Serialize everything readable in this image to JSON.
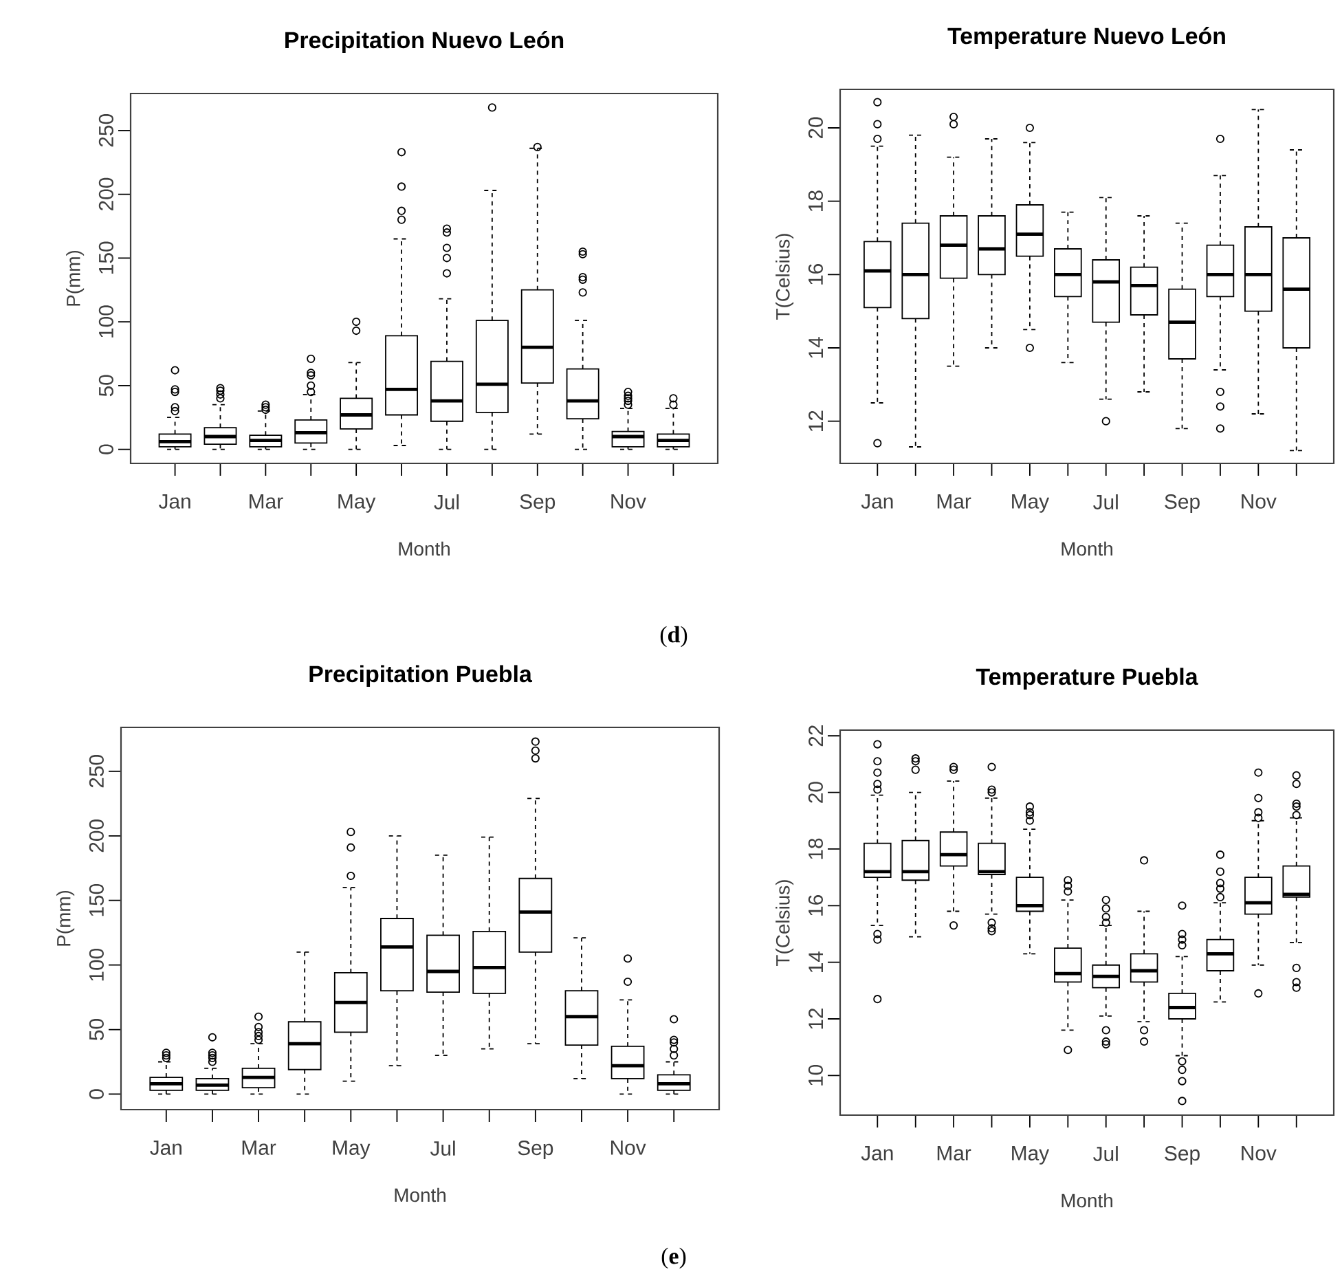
{
  "chart_data": [
    {
      "type": "box",
      "title": "Precipitation Nuevo León",
      "xlabel": "Month",
      "ylabel": "P(mm)",
      "marker": "circle",
      "annotations": [
        "(**d**)"
      ],
      "categories": [
        "Jan",
        null,
        "Mar",
        null,
        "May",
        null,
        "Jul",
        null,
        "Sep",
        null,
        "Nov",
        null
      ],
      "ylim": [
        -11,
        279
      ],
      "yticks": [
        0,
        50,
        100,
        150,
        200,
        250
      ],
      "boxes": [
        {
          "low": 0,
          "q1": 2,
          "median": 6,
          "q3": 12,
          "high": 25,
          "outliers": [
            30,
            33,
            45,
            47,
            62
          ]
        },
        {
          "low": 0,
          "q1": 4,
          "median": 10,
          "q3": 17,
          "high": 35,
          "outliers": [
            40,
            43,
            46,
            48
          ]
        },
        {
          "low": 0,
          "q1": 2,
          "median": 7,
          "q3": 11,
          "high": 30,
          "outliers": [
            31,
            33,
            35
          ]
        },
        {
          "low": 0,
          "q1": 5,
          "median": 13,
          "q3": 23,
          "high": 43,
          "outliers": [
            45,
            50,
            58,
            60,
            71
          ]
        },
        {
          "low": 0,
          "q1": 16,
          "median": 27,
          "q3": 40,
          "high": 68,
          "outliers": [
            93,
            100
          ]
        },
        {
          "low": 3,
          "q1": 27,
          "median": 47,
          "q3": 89,
          "high": 165,
          "outliers": [
            180,
            187,
            206,
            233
          ]
        },
        {
          "low": 0,
          "q1": 22,
          "median": 38,
          "q3": 69,
          "high": 118,
          "outliers": [
            138,
            150,
            158,
            170,
            173
          ]
        },
        {
          "low": 0,
          "q1": 29,
          "median": 51,
          "q3": 101,
          "high": 203,
          "outliers": [
            268
          ]
        },
        {
          "low": 12,
          "q1": 52,
          "median": 80,
          "q3": 125,
          "high": 236,
          "outliers": [
            237
          ]
        },
        {
          "low": 0,
          "q1": 24,
          "median": 38,
          "q3": 63,
          "high": 101,
          "outliers": [
            123,
            133,
            135,
            153,
            155
          ]
        },
        {
          "low": 0,
          "q1": 2,
          "median": 10,
          "q3": 14,
          "high": 32,
          "outliers": [
            35,
            38,
            40,
            42,
            45
          ]
        },
        {
          "low": 0,
          "q1": 2,
          "median": 7,
          "q3": 12,
          "high": 32,
          "outliers": [
            35,
            40
          ]
        }
      ]
    },
    {
      "type": "box",
      "title": "Temperature Nuevo León",
      "xlabel": "Month",
      "ylabel": "T(Celsius)",
      "marker": "circle",
      "categories": [
        "Jan",
        null,
        "Mar",
        null,
        "May",
        null,
        "Jul",
        null,
        "Sep",
        null,
        "Nov",
        null
      ],
      "ylim": [
        10.85,
        21.05
      ],
      "yticks": [
        12,
        14,
        16,
        18,
        20
      ],
      "boxes": [
        {
          "low": 12.5,
          "q1": 15.1,
          "median": 16.1,
          "q3": 16.9,
          "high": 19.5,
          "outliers": [
            11.4,
            19.7,
            20.1,
            20.7
          ]
        },
        {
          "low": 11.3,
          "q1": 14.8,
          "median": 16.0,
          "q3": 17.4,
          "high": 19.8
        },
        {
          "low": 13.5,
          "q1": 15.9,
          "median": 16.8,
          "q3": 17.6,
          "high": 19.2,
          "outliers": [
            20.1,
            20.3
          ]
        },
        {
          "low": 14.0,
          "q1": 16.0,
          "median": 16.7,
          "q3": 17.6,
          "high": 19.7
        },
        {
          "low": 14.5,
          "q1": 16.5,
          "median": 17.1,
          "q3": 17.9,
          "high": 19.6,
          "outliers": [
            14.0,
            20.0
          ]
        },
        {
          "low": 13.6,
          "q1": 15.4,
          "median": 16.0,
          "q3": 16.7,
          "high": 17.7
        },
        {
          "low": 12.6,
          "q1": 14.7,
          "median": 15.8,
          "q3": 16.4,
          "high": 18.1,
          "outliers": [
            12.0
          ]
        },
        {
          "low": 12.8,
          "q1": 14.9,
          "median": 15.7,
          "q3": 16.2,
          "high": 17.6
        },
        {
          "low": 11.8,
          "q1": 13.7,
          "median": 14.7,
          "q3": 15.6,
          "high": 17.4
        },
        {
          "low": 13.4,
          "q1": 15.4,
          "median": 16.0,
          "q3": 16.8,
          "high": 18.7,
          "outliers": [
            11.8,
            12.4,
            12.8,
            19.7
          ]
        },
        {
          "low": 12.2,
          "q1": 15.0,
          "median": 16.0,
          "q3": 17.3,
          "high": 20.5
        },
        {
          "low": 11.2,
          "q1": 14.0,
          "median": 15.6,
          "q3": 17.0,
          "high": 19.4
        }
      ]
    },
    {
      "type": "box",
      "title": "Precipitation  Puebla",
      "xlabel": "Month",
      "ylabel": "P(mm)",
      "marker": "circle",
      "annotations": [
        "(**e**)"
      ],
      "categories": [
        "Jan",
        null,
        "Mar",
        null,
        "May",
        null,
        "Jul",
        null,
        "Sep",
        null,
        "Nov",
        null
      ],
      "ylim": [
        -12,
        284
      ],
      "yticks": [
        0,
        50,
        100,
        150,
        200,
        250
      ],
      "boxes": [
        {
          "low": 0,
          "q1": 3,
          "median": 8,
          "q3": 13,
          "high": 25,
          "outliers": [
            28,
            30,
            32
          ]
        },
        {
          "low": 0,
          "q1": 3,
          "median": 7,
          "q3": 12,
          "high": 20,
          "outliers": [
            25,
            28,
            30,
            32,
            44
          ]
        },
        {
          "low": 0,
          "q1": 5,
          "median": 13,
          "q3": 20,
          "high": 39,
          "outliers": [
            42,
            45,
            48,
            52,
            60
          ]
        },
        {
          "low": 0,
          "q1": 19,
          "median": 39,
          "q3": 56,
          "high": 110
        },
        {
          "low": 10,
          "q1": 48,
          "median": 71,
          "q3": 94,
          "high": 160,
          "outliers": [
            169,
            191,
            203
          ]
        },
        {
          "low": 22,
          "q1": 80,
          "median": 114,
          "q3": 136,
          "high": 200
        },
        {
          "low": 30,
          "q1": 79,
          "median": 95,
          "q3": 123,
          "high": 185
        },
        {
          "low": 35,
          "q1": 78,
          "median": 98,
          "q3": 126,
          "high": 199
        },
        {
          "low": 39,
          "q1": 110,
          "median": 141,
          "q3": 167,
          "high": 229,
          "outliers": [
            260,
            266,
            273
          ]
        },
        {
          "low": 12,
          "q1": 38,
          "median": 60,
          "q3": 80,
          "high": 121
        },
        {
          "low": 0,
          "q1": 12,
          "median": 22,
          "q3": 37,
          "high": 73,
          "outliers": [
            87,
            105
          ]
        },
        {
          "low": 0,
          "q1": 3,
          "median": 8,
          "q3": 15,
          "high": 25,
          "outliers": [
            30,
            35,
            40,
            42,
            58
          ]
        }
      ]
    },
    {
      "type": "box",
      "title": "Temperature Puebla",
      "xlabel": "Month",
      "ylabel": "T(Celsius)",
      "marker": "circle",
      "categories": [
        "Jan",
        null,
        "Mar",
        null,
        "May",
        null,
        "Jul",
        null,
        "Sep",
        null,
        "Nov",
        null
      ],
      "ylim": [
        8.6,
        22.2
      ],
      "yticks": [
        10,
        12,
        14,
        16,
        18,
        20,
        22
      ],
      "boxes": [
        {
          "low": 15.3,
          "q1": 17.0,
          "median": 17.2,
          "q3": 18.2,
          "high": 19.9,
          "outliers": [
            12.7,
            14.8,
            15.0,
            20.1,
            20.3,
            20.7,
            21.1,
            21.7
          ]
        },
        {
          "low": 14.9,
          "q1": 16.9,
          "median": 17.2,
          "q3": 18.3,
          "high": 20.0,
          "outliers": [
            20.8,
            21.1,
            21.2
          ]
        },
        {
          "low": 15.8,
          "q1": 17.4,
          "median": 17.8,
          "q3": 18.6,
          "high": 20.4,
          "outliers": [
            15.3,
            20.8,
            20.9
          ]
        },
        {
          "low": 15.7,
          "q1": 17.1,
          "median": 17.2,
          "q3": 18.2,
          "high": 19.8,
          "outliers": [
            15.1,
            15.2,
            15.4,
            20.0,
            20.1,
            20.9
          ]
        },
        {
          "low": 14.3,
          "q1": 15.8,
          "median": 16.0,
          "q3": 17.0,
          "high": 18.7,
          "outliers": [
            19.0,
            19.2,
            19.3,
            19.5
          ]
        },
        {
          "low": 11.6,
          "q1": 13.3,
          "median": 13.6,
          "q3": 14.5,
          "high": 16.2,
          "outliers": [
            10.9,
            16.5,
            16.7,
            16.9
          ]
        },
        {
          "low": 12.1,
          "q1": 13.1,
          "median": 13.5,
          "q3": 13.9,
          "high": 15.3,
          "outliers": [
            11.1,
            11.2,
            11.6,
            15.4,
            15.6,
            15.9,
            16.2
          ]
        },
        {
          "low": 11.9,
          "q1": 13.3,
          "median": 13.7,
          "q3": 14.3,
          "high": 15.8,
          "outliers": [
            11.2,
            11.6,
            17.6
          ]
        },
        {
          "low": 10.7,
          "q1": 12.0,
          "median": 12.4,
          "q3": 12.9,
          "high": 14.2,
          "outliers": [
            9.1,
            9.8,
            10.2,
            10.5,
            14.6,
            14.8,
            15.0,
            16.0
          ]
        },
        {
          "low": 12.6,
          "q1": 13.7,
          "median": 14.3,
          "q3": 14.8,
          "high": 16.1,
          "outliers": [
            16.3,
            16.6,
            16.8,
            17.2,
            17.8
          ]
        },
        {
          "low": 13.9,
          "q1": 15.7,
          "median": 16.1,
          "q3": 17.0,
          "high": 19.0,
          "outliers": [
            12.9,
            19.1,
            19.3,
            19.8,
            20.7
          ]
        },
        {
          "low": 14.7,
          "q1": 16.3,
          "median": 16.4,
          "q3": 17.4,
          "high": 19.1,
          "outliers": [
            13.1,
            13.3,
            13.8,
            19.2,
            19.5,
            19.6,
            20.3,
            20.6
          ]
        }
      ]
    }
  ]
}
